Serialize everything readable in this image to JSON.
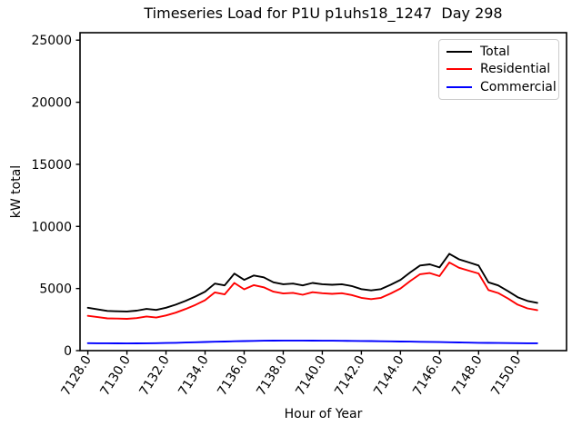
{
  "chart_data": {
    "type": "line",
    "title": "Timeseries Load for P1U p1uhs18_1247  Day 298",
    "xlabel": "Hour of Year",
    "ylabel": "kW total",
    "grid": false,
    "legend_position": "upper right",
    "xlim": [
      7127.6,
      7152.5
    ],
    "ylim": [
      0,
      25600
    ],
    "xticks": [
      7128,
      7130,
      7132,
      7134,
      7136,
      7138,
      7140,
      7142,
      7144,
      7146,
      7148,
      7150
    ],
    "xtick_labels": [
      "7128.0",
      "7130.0",
      "7132.0",
      "7134.0",
      "7136.0",
      "7138.0",
      "7140.0",
      "7142.0",
      "7144.0",
      "7146.0",
      "7148.0",
      "7150.0"
    ],
    "yticks": [
      0,
      5000,
      10000,
      15000,
      20000,
      25000
    ],
    "ytick_labels": [
      "0",
      "5000",
      "10000",
      "15000",
      "20000",
      "25000"
    ],
    "x": [
      7128,
      7128.5,
      7129,
      7129.5,
      7130,
      7130.5,
      7131,
      7131.5,
      7132,
      7132.5,
      7133,
      7133.5,
      7134,
      7134.5,
      7135,
      7135.5,
      7136,
      7136.5,
      7137,
      7137.5,
      7138,
      7138.5,
      7139,
      7139.5,
      7140,
      7140.5,
      7141,
      7141.5,
      7142,
      7142.5,
      7143,
      7143.5,
      7144,
      7144.5,
      7145,
      7145.5,
      7146,
      7146.5,
      7147,
      7147.5,
      7148,
      7148.5,
      7149,
      7149.5,
      7150,
      7150.5,
      7151
    ],
    "series": [
      {
        "name": "Total",
        "color": "#000000",
        "values": [
          3450,
          3320,
          3200,
          3170,
          3150,
          3220,
          3360,
          3280,
          3450,
          3700,
          4000,
          4350,
          4750,
          5400,
          5250,
          6200,
          5700,
          6050,
          5900,
          5500,
          5350,
          5400,
          5250,
          5450,
          5350,
          5300,
          5350,
          5200,
          4950,
          4850,
          4950,
          5300,
          5700,
          6300,
          6850,
          6950,
          6700,
          7800,
          7350,
          7100,
          6850,
          5500,
          5250,
          4800,
          4300,
          4000,
          3850
        ]
      },
      {
        "name": "Residential",
        "color": "#ff0000",
        "values": [
          2800,
          2700,
          2600,
          2580,
          2560,
          2620,
          2750,
          2660,
          2830,
          3060,
          3350,
          3680,
          4060,
          4690,
          4530,
          5450,
          4940,
          5270,
          5100,
          4750,
          4600,
          4650,
          4500,
          4700,
          4620,
          4570,
          4620,
          4480,
          4250,
          4150,
          4250,
          4600,
          5000,
          5600,
          6150,
          6250,
          6000,
          7100,
          6670,
          6440,
          6210,
          4880,
          4640,
          4200,
          3700,
          3400,
          3260
        ]
      },
      {
        "name": "Commercial",
        "color": "#0000ff",
        "values": [
          600,
          595,
          590,
          585,
          580,
          585,
          590,
          600,
          615,
          630,
          650,
          670,
          695,
          715,
          735,
          755,
          770,
          785,
          795,
          805,
          810,
          812,
          810,
          805,
          800,
          795,
          790,
          782,
          775,
          765,
          755,
          745,
          735,
          725,
          712,
          700,
          688,
          675,
          660,
          645,
          632,
          620,
          612,
          605,
          600,
          595,
          592
        ]
      }
    ]
  }
}
